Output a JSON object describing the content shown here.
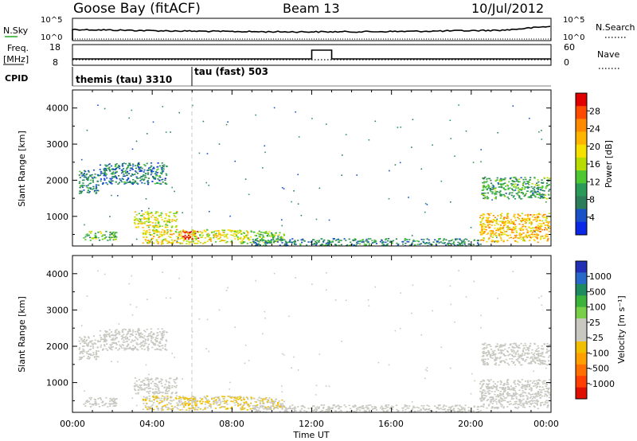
{
  "header": {
    "station": "Goose Bay (fitACF)",
    "beam": "Beam 13",
    "date": "10/Jul/2012"
  },
  "top_panels": {
    "nsky_label": "N.Sky",
    "nsky_ticks": [
      "10^5",
      "10^0"
    ],
    "nsearch_label": "N.Search",
    "nsearch_ticks": [
      "10^5",
      "10^0"
    ],
    "freq_label_1": "Freq.",
    "freq_label_2": "[MHz]",
    "freq_ticks": [
      "18",
      "8"
    ],
    "nave_label": "Nave",
    "nave_ticks": [
      "60",
      "0"
    ],
    "cpid_label": "CPID",
    "cpid_segments": [
      {
        "label": "themis (tau) 3310",
        "start_hour": 0.0
      },
      {
        "label": "tau (fast) 503",
        "start_hour": 6.0
      }
    ],
    "freq_step": {
      "start_hour": 12.0,
      "end_hour": 13.0
    }
  },
  "x_axis": {
    "title": "Time UT",
    "ticks": [
      "00:00",
      "04:00",
      "08:00",
      "12:00",
      "16:00",
      "20:00",
      "00:00"
    ],
    "range_hours": [
      0,
      24
    ]
  },
  "y_axis": {
    "title": "Slant Range [km]",
    "ticks": [
      "4000",
      "3000",
      "2000",
      "1000"
    ],
    "range_km": [
      180,
      4500
    ]
  },
  "power_colorbar": {
    "title": "Power [dB]",
    "ticks": [
      "28",
      "24",
      "20",
      "16",
      "12",
      "8",
      "4"
    ],
    "colors": [
      "#e10000",
      "#ff4b00",
      "#ff8a00",
      "#ffb400",
      "#f5e000",
      "#b8dc00",
      "#4ec830",
      "#2a9a58",
      "#2c7e5a",
      "#1a50c8",
      "#0a28e6"
    ]
  },
  "velocity_colorbar": {
    "title": "Velocity [m s⁻¹]",
    "ticks": [
      "1000",
      "500",
      "100",
      "25",
      "-25",
      "-100",
      "-500",
      "-1000"
    ],
    "colors": [
      "#2230b8",
      "#2868c8",
      "#1e8a60",
      "#3cb43c",
      "#78d048",
      "#c8c8c0",
      "#c8c8c0",
      "#f0c000",
      "#ffa000",
      "#ff7000",
      "#ff4000",
      "#e01000"
    ]
  },
  "chart_data": {
    "type": "heatmap",
    "title": "Goose Bay (fitACF) Beam 13 10/Jul/2012",
    "xlabel": "Time UT",
    "ylabel": "Slant Range [km]",
    "xlim_hours": [
      0,
      24
    ],
    "ylim_km": [
      180,
      4500
    ],
    "cpid_change_hour": 6.0,
    "power_db_range": [
      0,
      30
    ],
    "velocity_ms_range": [
      -1000,
      1000
    ],
    "echo_regions": [
      {
        "t0": 0.3,
        "t1": 1.3,
        "r0": 1650,
        "r1": 2300,
        "power_db": 8,
        "velocity_ms": 0
      },
      {
        "t0": 1.3,
        "t1": 4.7,
        "r0": 1900,
        "r1": 2500,
        "power_db": 7,
        "velocity_ms": 0
      },
      {
        "t0": 0.5,
        "t1": 2.2,
        "r0": 350,
        "r1": 600,
        "power_db": 12,
        "velocity_ms": 40
      },
      {
        "t0": 3.0,
        "t1": 5.2,
        "r0": 700,
        "r1": 1150,
        "power_db": 16,
        "velocity_ms": 0
      },
      {
        "t0": 3.5,
        "t1": 6.2,
        "r0": 250,
        "r1": 650,
        "power_db": 18,
        "velocity_ms": -150
      },
      {
        "t0": 5.5,
        "t1": 6.3,
        "r0": 380,
        "r1": 600,
        "power_db": 28,
        "velocity_ms": -200
      },
      {
        "t0": 6.0,
        "t1": 9.0,
        "r0": 260,
        "r1": 650,
        "power_db": 16,
        "velocity_ms": -180
      },
      {
        "t0": 9.0,
        "t1": 10.6,
        "r0": 280,
        "r1": 600,
        "power_db": 12,
        "velocity_ms": -160
      },
      {
        "t0": 9.0,
        "t1": 20.5,
        "r0": 200,
        "r1": 400,
        "power_db": 8,
        "velocity_ms": 0
      },
      {
        "t0": 20.4,
        "t1": 23.9,
        "r0": 300,
        "r1": 1100,
        "power_db": 20,
        "velocity_ms": 0
      },
      {
        "t0": 20.5,
        "t1": 23.9,
        "r0": 1500,
        "r1": 2100,
        "power_db": 10,
        "velocity_ms": 0
      }
    ]
  }
}
